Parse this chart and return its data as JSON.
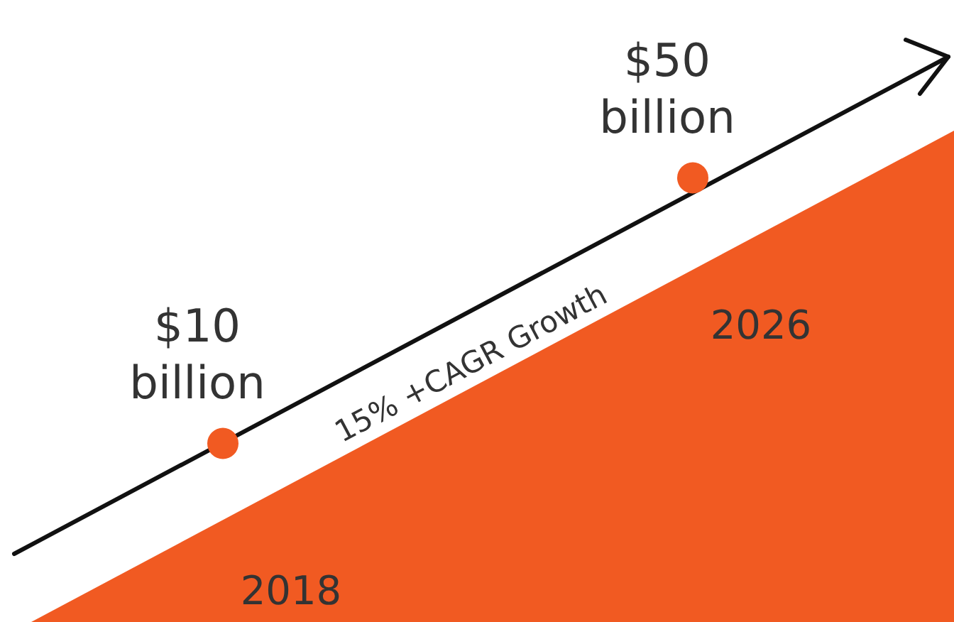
{
  "chart_data": {
    "type": "other",
    "categories": [
      "2018",
      "2026"
    ],
    "values": [
      10,
      50
    ],
    "value_labels": [
      "$10 billion",
      "$50 billion"
    ],
    "color": "#f15a22",
    "annotations": [
      "15% +CAGR Growth"
    ]
  }
}
